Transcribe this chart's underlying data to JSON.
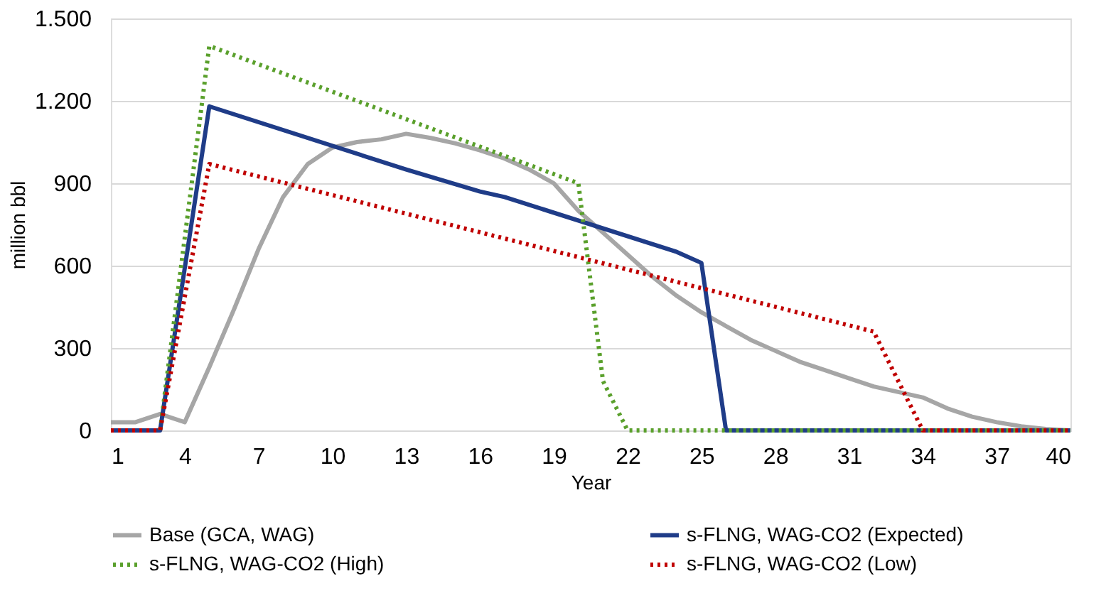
{
  "chart_data": {
    "type": "line",
    "xlabel": "Year",
    "ylabel": "million bbl",
    "xlim": [
      1,
      40
    ],
    "xticks": [
      1,
      4,
      7,
      10,
      13,
      16,
      19,
      22,
      25,
      28,
      31,
      34,
      37,
      40
    ],
    "ylim": [
      0,
      1500
    ],
    "yticks": [
      0,
      300,
      600,
      900,
      {
        "value": 1200,
        "label": "1.200"
      },
      {
        "value": 1500,
        "label": "1.500"
      }
    ],
    "grid": "y",
    "legend": "bottom",
    "marker": "none",
    "series": [
      {
        "name": "Base (GCA, WAG)",
        "color": "#a6a6a6",
        "line_style": "solid",
        "x": [
          1,
          2,
          3,
          4,
          5,
          6,
          7,
          8,
          9,
          10,
          11,
          12,
          13,
          14,
          15,
          16,
          17,
          18,
          19,
          20,
          21,
          22,
          23,
          24,
          25,
          26,
          27,
          28,
          29,
          30,
          31,
          32,
          33,
          34,
          35,
          36,
          37,
          38,
          39,
          40
        ],
        "values": [
          30,
          30,
          60,
          30,
          230,
          440,
          660,
          850,
          970,
          1030,
          1050,
          1060,
          1080,
          1065,
          1045,
          1020,
          990,
          950,
          900,
          800,
          720,
          640,
          560,
          490,
          430,
          380,
          330,
          290,
          250,
          220,
          190,
          160,
          140,
          120,
          80,
          50,
          30,
          15,
          5,
          0
        ]
      },
      {
        "name": "s-FLNG, WAG-CO2 (Expected)",
        "color": "#1f3c88",
        "line_style": "solid",
        "x": [
          1,
          3,
          5,
          13,
          16,
          17,
          24,
          25,
          26,
          40
        ],
        "values": [
          0,
          0,
          1180,
          950,
          870,
          850,
          650,
          610,
          0,
          0
        ]
      },
      {
        "name": "s-FLNG, WAG-CO2 (High)",
        "color": "#5aa02c",
        "line_style": "dotted",
        "x": [
          1,
          3,
          5,
          20,
          21,
          22,
          40
        ],
        "values": [
          0,
          0,
          1400,
          900,
          180,
          0,
          0
        ]
      },
      {
        "name": "s-FLNG, WAG-CO2 (Low)",
        "color": "#c00000",
        "line_style": "dotted",
        "x": [
          1,
          3,
          5,
          32,
          34,
          40
        ],
        "values": [
          0,
          0,
          970,
          360,
          0,
          0
        ]
      }
    ]
  }
}
